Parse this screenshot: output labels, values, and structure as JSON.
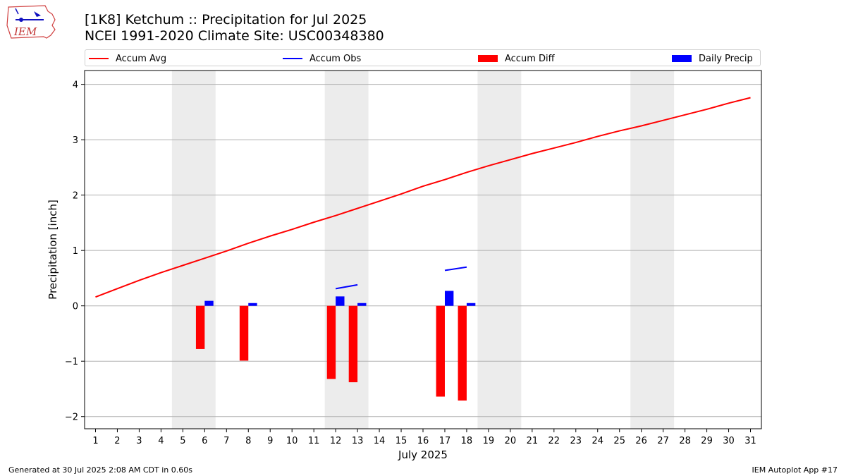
{
  "logo": {
    "text": "IEM"
  },
  "title": {
    "line1": "[1K8] Ketchum :: Precipitation for Jul 2025",
    "line2": "NCEI 1991-2020 Climate Site: USC00348380"
  },
  "footer": {
    "left": "Generated at 30 Jul 2025 2:08 AM CDT in 0.60s",
    "right": "IEM Autoplot App #17"
  },
  "colors": {
    "avg": "#ff0000",
    "obs": "#0000ff",
    "diff": "#ff0000",
    "daily": "#0000ff",
    "weekend": "#ececec",
    "grid": "#b0b0b0"
  },
  "legend": [
    {
      "label": "Accum Avg",
      "kind": "line",
      "color": "#ff0000"
    },
    {
      "label": "Accum Obs",
      "kind": "line",
      "color": "#0000ff"
    },
    {
      "label": "Accum Diff",
      "kind": "patch",
      "color": "#ff0000"
    },
    {
      "label": "Daily Precip",
      "kind": "patch",
      "color": "#0000ff"
    }
  ],
  "chart_data": {
    "type": "bar",
    "xlabel": "July 2025",
    "ylabel": "Precipitation [inch]",
    "xlim": [
      0.5,
      31.5
    ],
    "ylim": [
      -2.22,
      4.25
    ],
    "yticks": [
      -2,
      -1,
      0,
      1,
      2,
      3,
      4
    ],
    "ytick_labels": [
      "−2",
      "−1",
      "0",
      "1",
      "2",
      "3",
      "4"
    ],
    "days": [
      1,
      2,
      3,
      4,
      5,
      6,
      7,
      8,
      9,
      10,
      11,
      12,
      13,
      14,
      15,
      16,
      17,
      18,
      19,
      20,
      21,
      22,
      23,
      24,
      25,
      26,
      27,
      28,
      29,
      30,
      31
    ],
    "weekend_spans": [
      [
        4.5,
        6.5
      ],
      [
        11.5,
        13.5
      ],
      [
        18.5,
        20.5
      ],
      [
        25.5,
        27.5
      ]
    ],
    "accum_avg": [
      0.16,
      0.31,
      0.46,
      0.6,
      0.73,
      0.86,
      0.99,
      1.13,
      1.26,
      1.38,
      1.51,
      1.63,
      1.76,
      1.89,
      2.02,
      2.16,
      2.28,
      2.41,
      2.53,
      2.64,
      2.75,
      2.85,
      2.95,
      3.06,
      3.16,
      3.25,
      3.35,
      3.45,
      3.55,
      3.66,
      3.76
    ],
    "accum_obs_segments": [
      {
        "days": [
          12.0,
          13.0
        ],
        "values": [
          0.31,
          0.38
        ]
      },
      {
        "days": [
          17.0,
          18.0
        ],
        "values": [
          0.64,
          0.7
        ]
      }
    ],
    "accum_diff": [
      {
        "day": 6,
        "value": -0.78
      },
      {
        "day": 8,
        "value": -0.99
      },
      {
        "day": 12,
        "value": -1.32
      },
      {
        "day": 13,
        "value": -1.38
      },
      {
        "day": 17,
        "value": -1.64
      },
      {
        "day": 18,
        "value": -1.71
      }
    ],
    "daily_precip": [
      {
        "day": 6,
        "value": 0.09
      },
      {
        "day": 8,
        "value": 0.05
      },
      {
        "day": 12,
        "value": 0.17
      },
      {
        "day": 13,
        "value": 0.05
      },
      {
        "day": 17,
        "value": 0.27
      },
      {
        "day": 18,
        "value": 0.05
      }
    ]
  }
}
